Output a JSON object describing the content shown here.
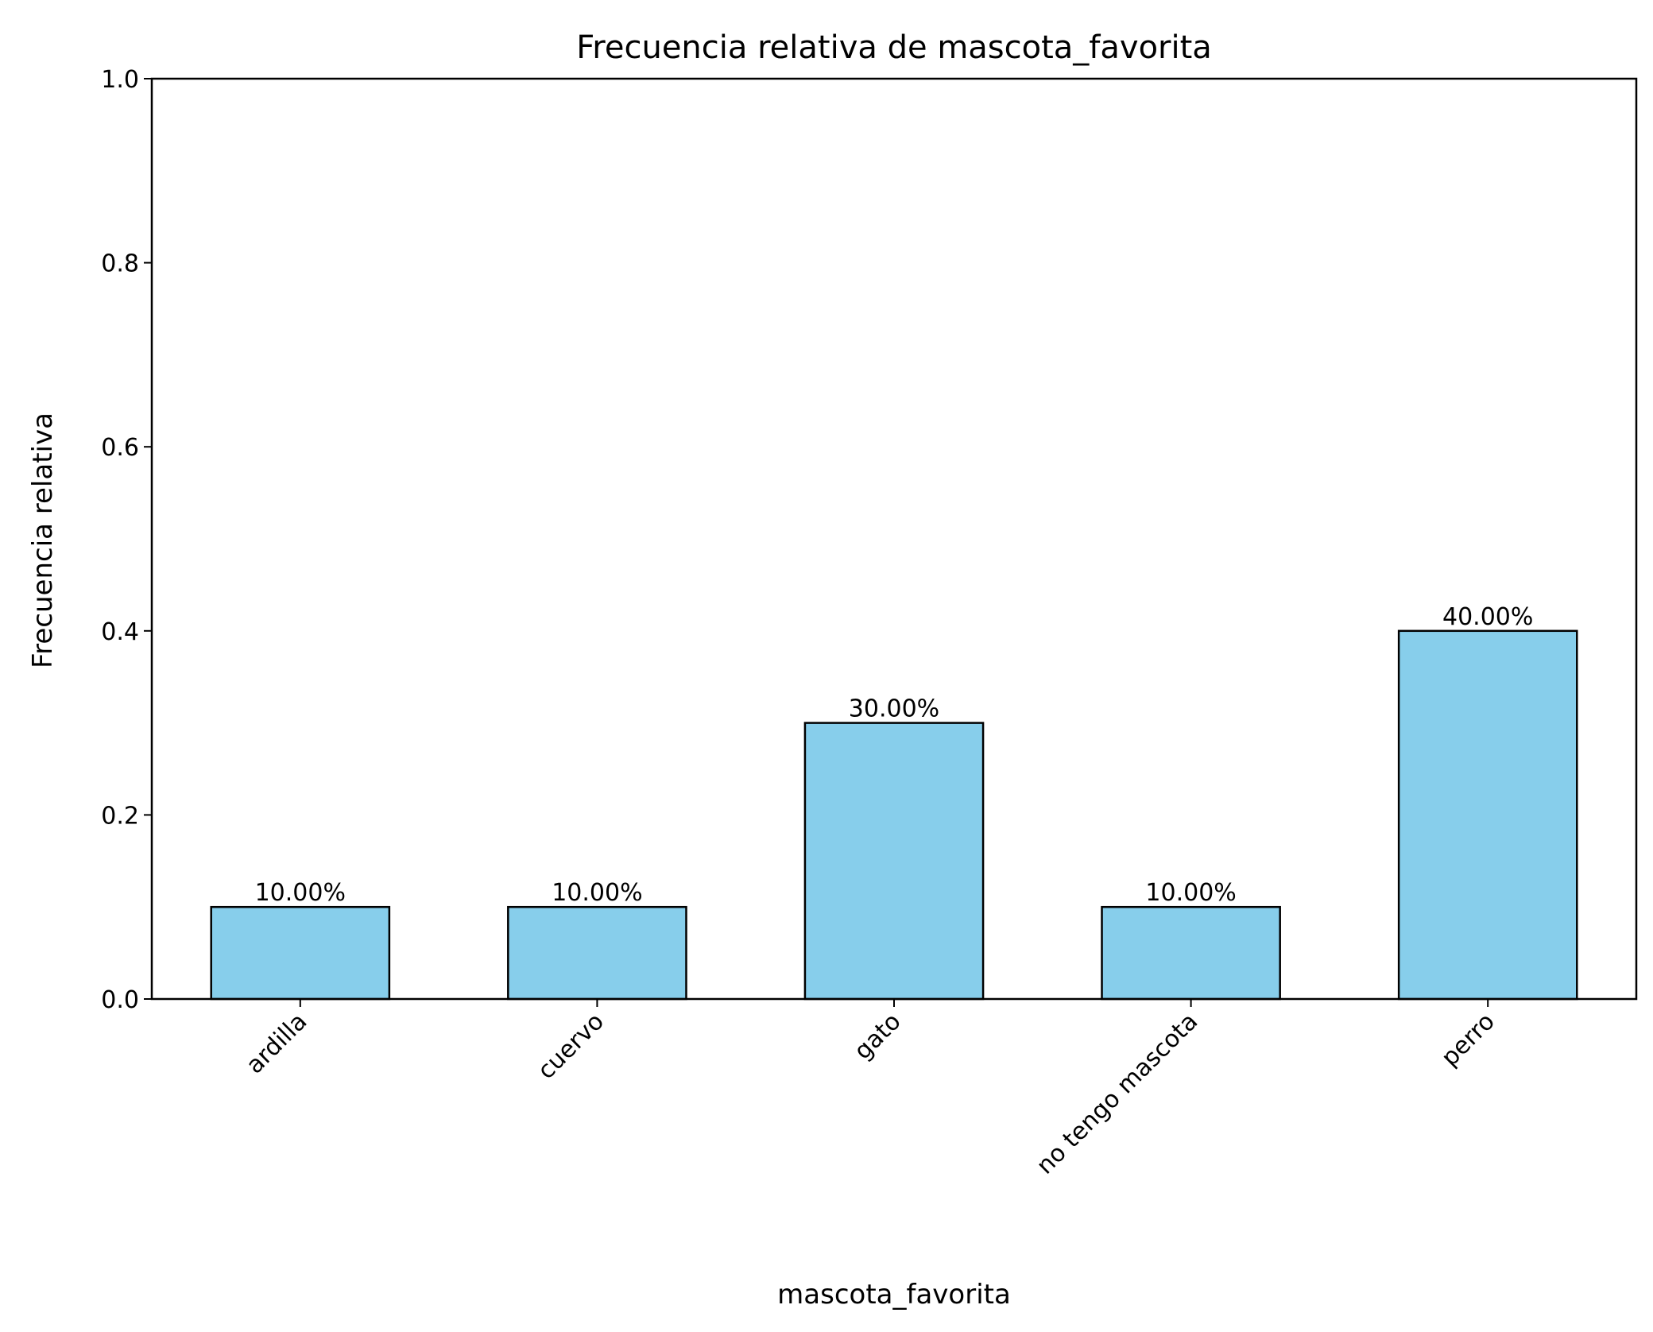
{
  "chart_data": {
    "type": "bar",
    "title": "Frecuencia relativa de mascota_favorita",
    "xlabel": "mascota_favorita",
    "ylabel": "Frecuencia relativa",
    "categories": [
      "ardilla",
      "cuervo",
      "gato",
      "no tengo mascota",
      "perro"
    ],
    "values": [
      0.1,
      0.1,
      0.3,
      0.1,
      0.4
    ],
    "data_labels": [
      "10.00%",
      "10.00%",
      "30.00%",
      "10.00%",
      "40.00%"
    ],
    "ylim": [
      0,
      1.0
    ],
    "yticks": [
      0.0,
      0.2,
      0.4,
      0.6,
      0.8,
      1.0
    ],
    "ytick_labels": [
      "0.0",
      "0.2",
      "0.4",
      "0.6",
      "0.8",
      "1.0"
    ],
    "grid": false,
    "legend": "none",
    "colors": {
      "bar_fill": "#87CEEB",
      "bar_edge": "#000000"
    }
  }
}
